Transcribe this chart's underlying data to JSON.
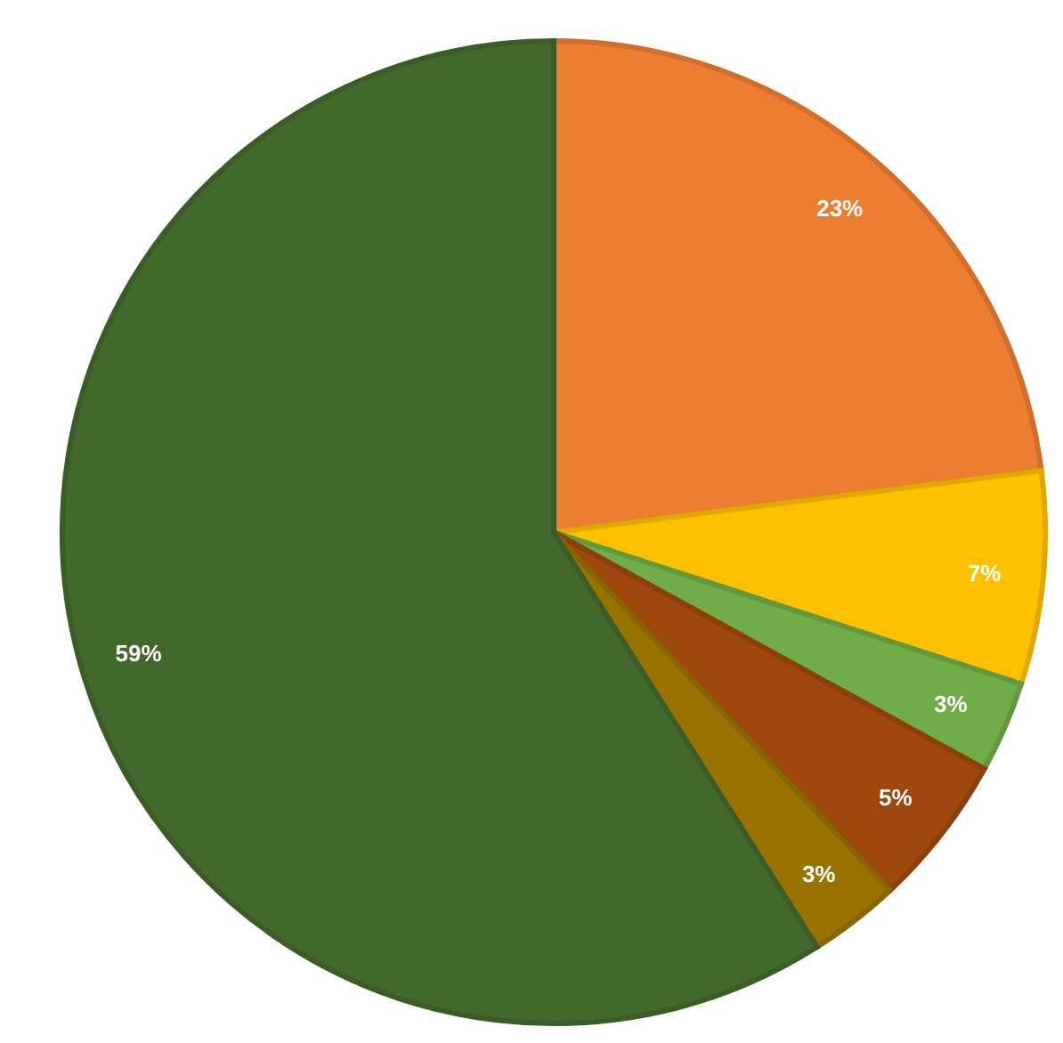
{
  "chart_data": {
    "type": "pie",
    "categories": [
      null,
      null,
      null,
      null,
      null,
      null
    ],
    "values": [
      23,
      7,
      3,
      5,
      3,
      59
    ],
    "colors": [
      "#ed7d31",
      "#ffc000",
      "#70ad47",
      "#9e480e",
      "#997300",
      "#43682b"
    ],
    "value_labels": [
      "23%",
      "7%",
      "3%",
      "5%",
      "3%",
      "59%"
    ],
    "legend": false
  }
}
